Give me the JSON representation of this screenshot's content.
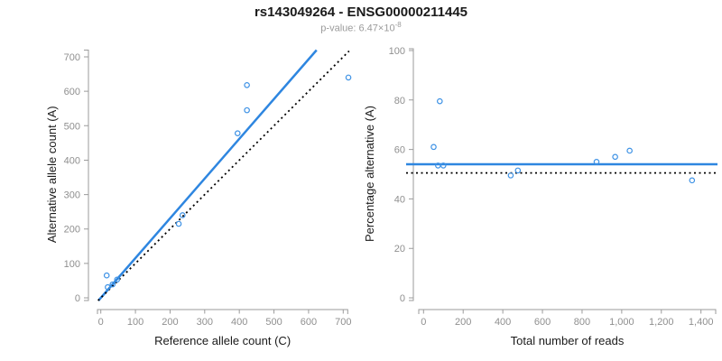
{
  "header": {
    "title": "rs143049264 - ENSG00000211445",
    "pvalue_prefix": "p-value: 6.47×10",
    "pvalue_exponent": "-8"
  },
  "colors": {
    "accent_blue": "#2E86E0",
    "point_blue": "#3E92E5",
    "dotted_black": "#000000",
    "axis_gray": "#9B9B9B",
    "tick_label_gray": "#8F8F8F",
    "axis_title_color": "#1A1A1A",
    "subtitle_gray": "#9B9B9B",
    "background": "#FFFFFF"
  },
  "chart_data": [
    {
      "name": "allele-count-scatter",
      "type": "scatter",
      "xlabel": "Reference allele count (C)",
      "ylabel": "Alternative allele count (A)",
      "xlim": [
        0,
        700
      ],
      "ylim": [
        0,
        700
      ],
      "xticks": [
        0,
        100,
        200,
        300,
        400,
        500,
        600,
        700
      ],
      "xtick_labels": [
        "0",
        "100",
        "200",
        "300",
        "400",
        "500",
        "600",
        "700"
      ],
      "yticks": [
        0,
        100,
        200,
        300,
        400,
        500,
        600,
        700
      ],
      "ytick_labels": [
        "0",
        "100",
        "200",
        "300",
        "400",
        "500",
        "600",
        "700"
      ],
      "grid": false,
      "legend": "none",
      "points": [
        [
          20,
          31
        ],
        [
          17,
          65
        ],
        [
          34,
          39
        ],
        [
          47,
          53
        ],
        [
          225,
          215
        ],
        [
          236,
          240
        ],
        [
          395,
          478
        ],
        [
          422,
          545
        ],
        [
          422,
          618
        ],
        [
          715,
          640
        ]
      ],
      "ab_lines": [
        {
          "name": "fit-line",
          "style": "solid",
          "color_key": "accent_blue",
          "slope": 1.155,
          "intercept": 0
        },
        {
          "name": "identity-line",
          "style": "dotted",
          "color_key": "dotted_black",
          "slope": 1,
          "intercept": 0
        }
      ]
    },
    {
      "name": "percentage-vs-reads-scatter",
      "type": "scatter",
      "xlabel": "Total number of reads",
      "ylabel": "Percentage alternative (A)",
      "xlim": [
        0,
        1400
      ],
      "ylim": [
        0,
        100
      ],
      "xticks": [
        0,
        200,
        400,
        600,
        800,
        1000,
        1200,
        1400
      ],
      "xtick_labels": [
        "0",
        "200",
        "400",
        "600",
        "800",
        "1,000",
        "1,200",
        "1,400"
      ],
      "yticks": [
        0,
        20,
        40,
        60,
        80,
        100
      ],
      "ytick_labels": [
        "0",
        "20",
        "40",
        "60",
        "80",
        "100"
      ],
      "grid": false,
      "legend": "none",
      "points": [
        [
          51,
          61
        ],
        [
          82,
          79.5
        ],
        [
          73,
          53.5
        ],
        [
          100,
          53.5
        ],
        [
          440,
          49.5
        ],
        [
          476,
          51.5
        ],
        [
          873,
          55
        ],
        [
          967,
          57
        ],
        [
          1040,
          59.5
        ],
        [
          1355,
          47.5
        ]
      ],
      "h_lines": [
        {
          "name": "mean-percentage-line",
          "style": "solid",
          "color_key": "accent_blue",
          "y": 54
        },
        {
          "name": "null-50-percent-line",
          "style": "dotted",
          "color_key": "dotted_black",
          "y": 50.5
        }
      ]
    }
  ]
}
